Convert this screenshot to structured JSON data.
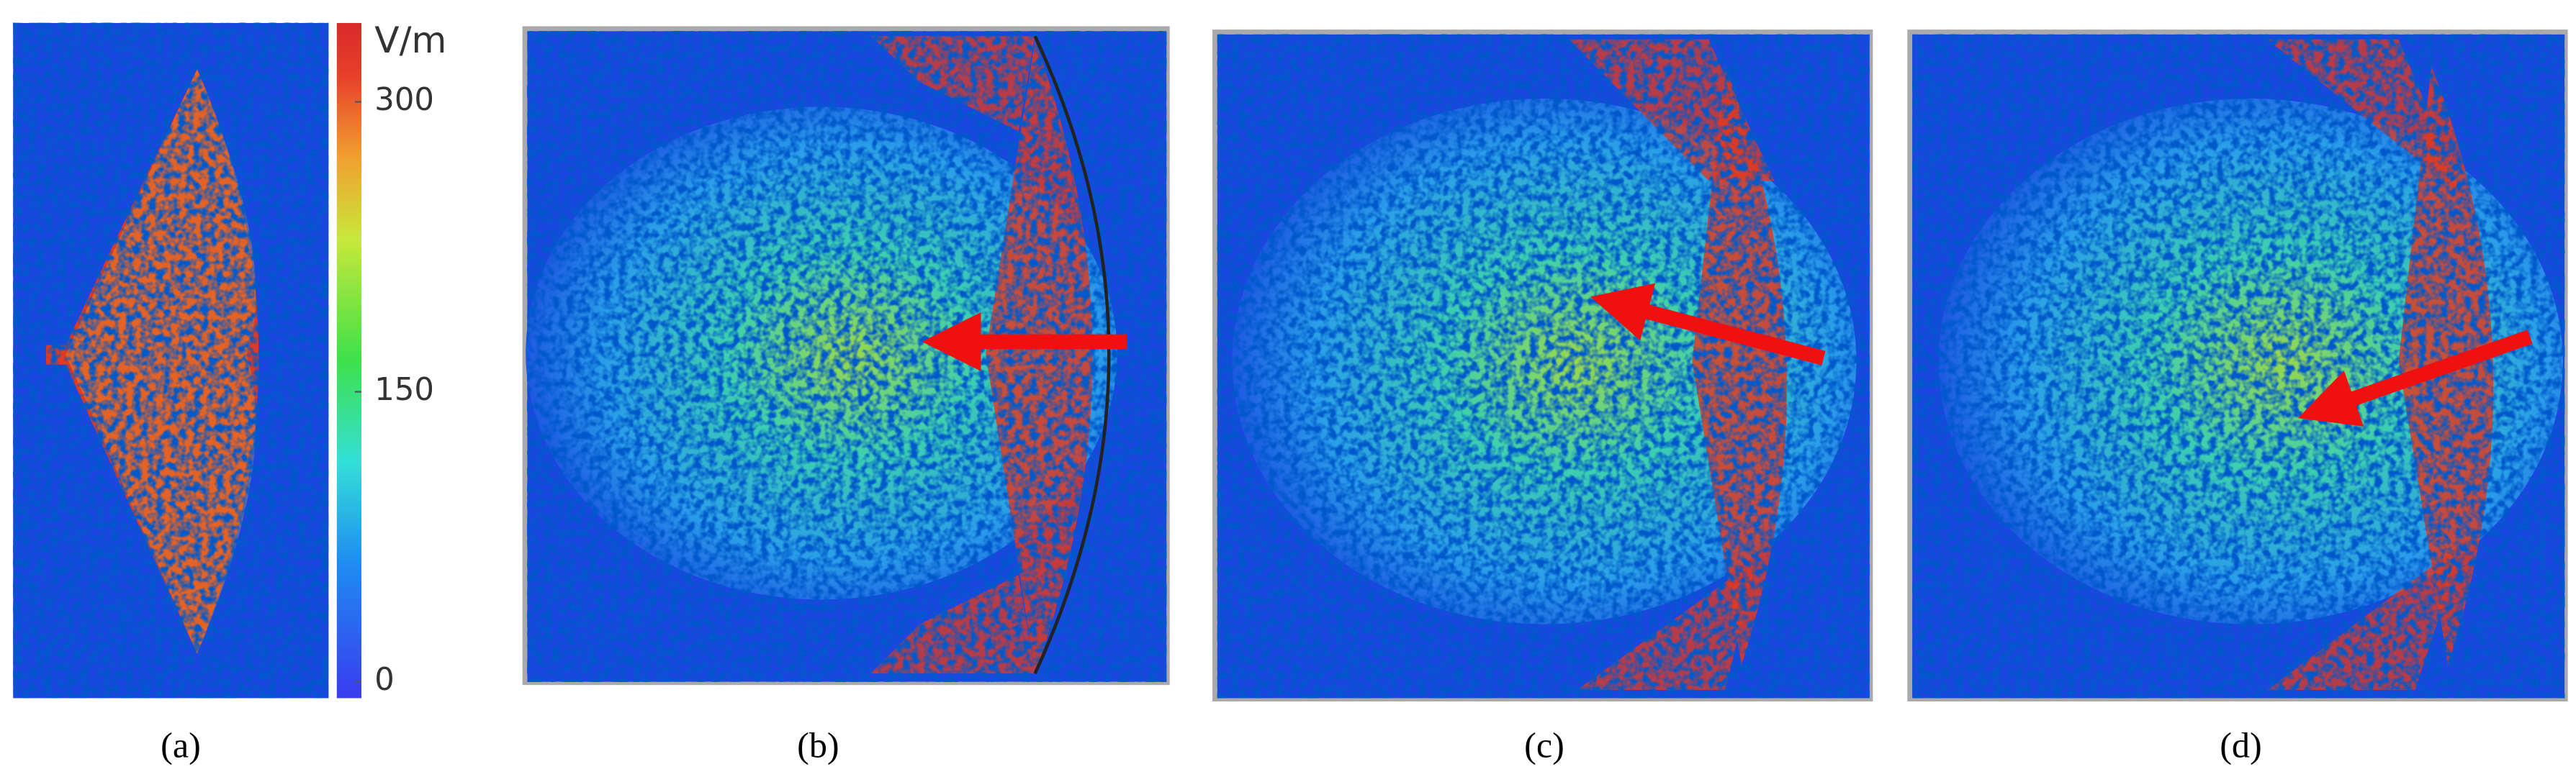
{
  "colorbar": {
    "unit": "V/m",
    "ticks": [
      0,
      150,
      300
    ]
  },
  "panels": [
    {
      "label": "(a)"
    },
    {
      "label": "(b)"
    },
    {
      "label": "(c)"
    },
    {
      "label": "(d)"
    }
  ]
}
